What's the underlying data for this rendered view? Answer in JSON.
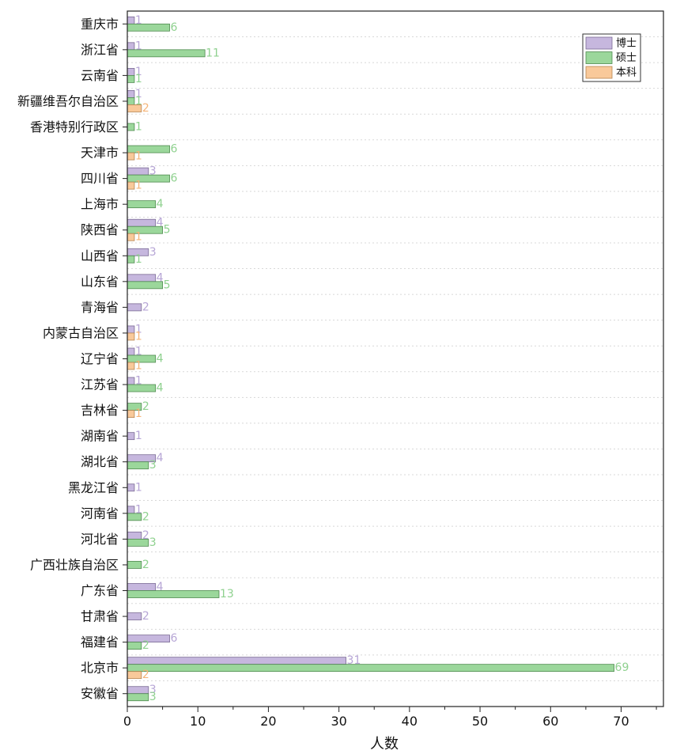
{
  "chart_data": {
    "type": "bar",
    "orientation": "horizontal",
    "xlabel": "人数",
    "ylabel": "",
    "xlim": [
      0,
      76
    ],
    "xticks": [
      0,
      10,
      20,
      30,
      40,
      50,
      60,
      70
    ],
    "grid": "horizontal dashed",
    "legend_position": "top-right",
    "categories": [
      "重庆市",
      "浙江省",
      "云南省",
      "新疆维吾尔自治区",
      "香港特别行政区",
      "天津市",
      "四川省",
      "上海市",
      "陕西省",
      "山西省",
      "山东省",
      "青海省",
      "内蒙古自治区",
      "辽宁省",
      "江苏省",
      "吉林省",
      "湖南省",
      "湖北省",
      "黑龙江省",
      "河南省",
      "河北省",
      "广西壮族自治区",
      "广东省",
      "甘肃省",
      "福建省",
      "北京市",
      "安徽省"
    ],
    "series": [
      {
        "name": "博士",
        "color": "#c6b7de",
        "stroke": "#7a6a94",
        "label_color": "#b7a6d6",
        "values": [
          1,
          1,
          1,
          1,
          null,
          null,
          3,
          null,
          4,
          3,
          4,
          2,
          1,
          1,
          1,
          null,
          1,
          4,
          1,
          1,
          2,
          null,
          4,
          2,
          6,
          31,
          3
        ]
      },
      {
        "name": "硕士",
        "color": "#9bd79b",
        "stroke": "#4e8a4e",
        "label_color": "#8fd18f",
        "values": [
          6,
          11,
          1,
          1,
          1,
          6,
          6,
          4,
          5,
          1,
          5,
          null,
          null,
          4,
          4,
          2,
          null,
          3,
          null,
          2,
          3,
          2,
          13,
          null,
          2,
          69,
          3
        ]
      },
      {
        "name": "本科",
        "color": "#f9c99a",
        "stroke": "#b78450",
        "label_color": "#f5b57a",
        "values": [
          null,
          null,
          null,
          2,
          null,
          1,
          1,
          null,
          1,
          null,
          null,
          null,
          1,
          1,
          null,
          1,
          null,
          null,
          null,
          null,
          null,
          null,
          null,
          null,
          null,
          2,
          null
        ]
      }
    ]
  }
}
